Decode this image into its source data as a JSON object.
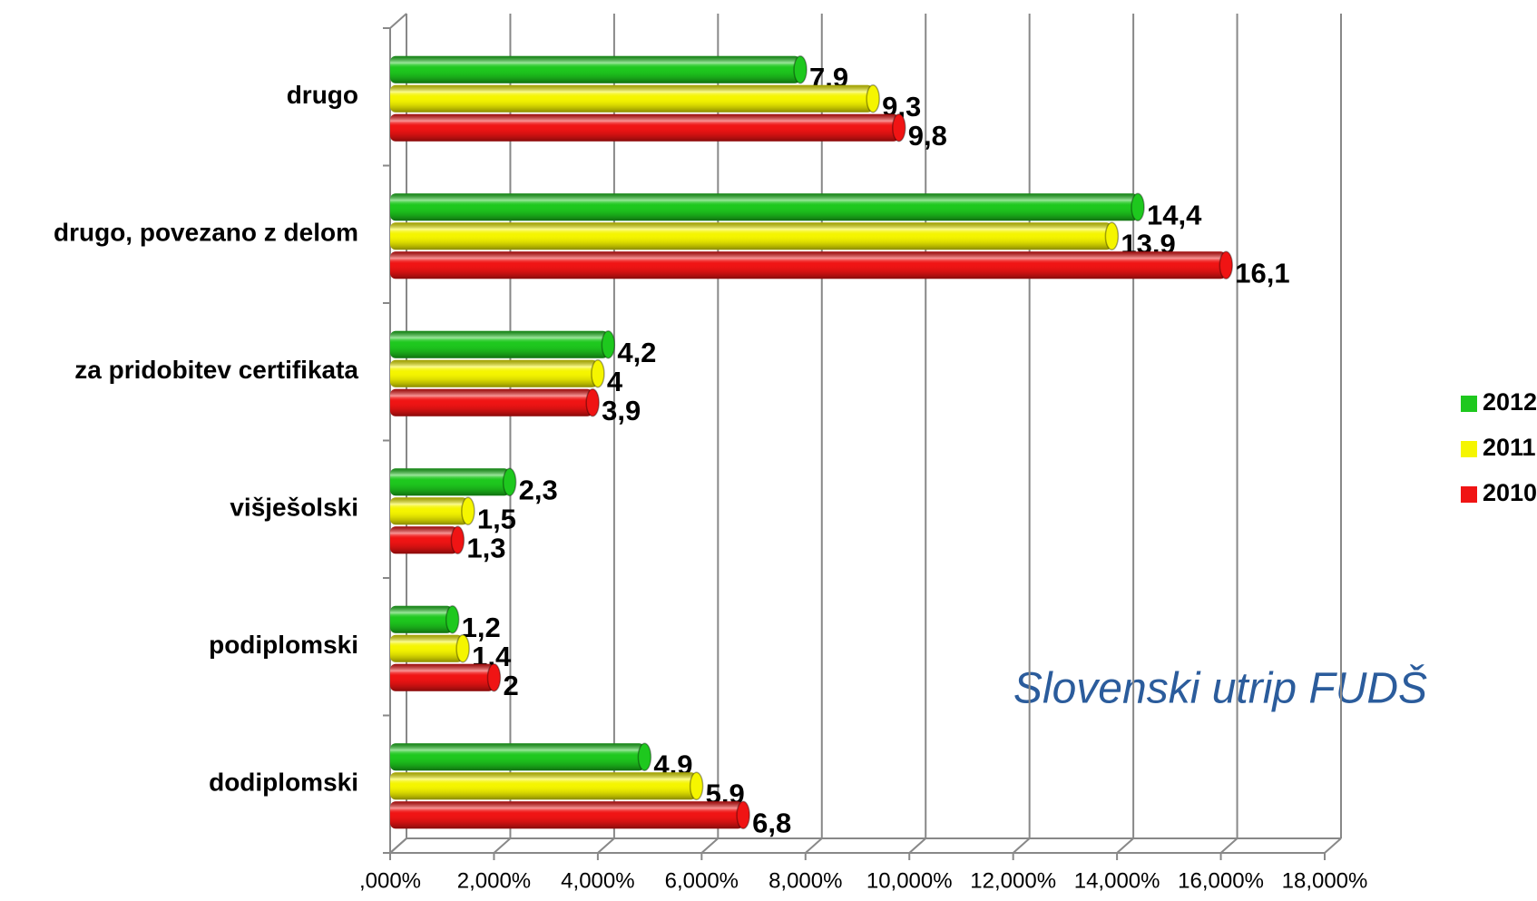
{
  "chart_data": {
    "type": "bar",
    "orientation": "horizontal",
    "categories": [
      "drugo",
      "drugo, povezano z delom",
      "za pridobitev certifikata",
      "višješolski",
      "podiplomski",
      "dodiplomski"
    ],
    "series": [
      {
        "name": "2012",
        "color": "#1ec81e",
        "values": [
          7.9,
          14.4,
          4.2,
          2.3,
          1.2,
          4.9
        ],
        "value_labels": [
          "7,9",
          "14,4",
          "4,2",
          "2,3",
          "1,2",
          "4,9"
        ]
      },
      {
        "name": "2011",
        "color": "#f5f500",
        "values": [
          9.3,
          13.9,
          4,
          1.5,
          1.4,
          5.9
        ],
        "value_labels": [
          "9,3",
          "13,9",
          "4",
          "1,5",
          "1,4",
          "5,9"
        ]
      },
      {
        "name": "2010",
        "color": "#f01414",
        "values": [
          9.8,
          16.1,
          3.9,
          1.3,
          2,
          6.8
        ],
        "value_labels": [
          "9,8",
          "16,1",
          "3,9",
          "1,3",
          "2",
          "6,8"
        ]
      }
    ],
    "xlim": [
      0,
      18
    ],
    "xticks": [
      {
        "value": 0,
        "label": ",000%"
      },
      {
        "value": 2,
        "label": "2,000%"
      },
      {
        "value": 4,
        "label": "4,000%"
      },
      {
        "value": 6,
        "label": "6,000%"
      },
      {
        "value": 8,
        "label": "8,000%"
      },
      {
        "value": 10,
        "label": "10,000%"
      },
      {
        "value": 12,
        "label": "12,000%"
      },
      {
        "value": 14,
        "label": "14,000%"
      },
      {
        "value": 16,
        "label": "16,000%"
      },
      {
        "value": 18,
        "label": "18,000%"
      }
    ],
    "grid": true,
    "legend": "right",
    "annotation": "Slovenski utrip FUDŠ"
  }
}
